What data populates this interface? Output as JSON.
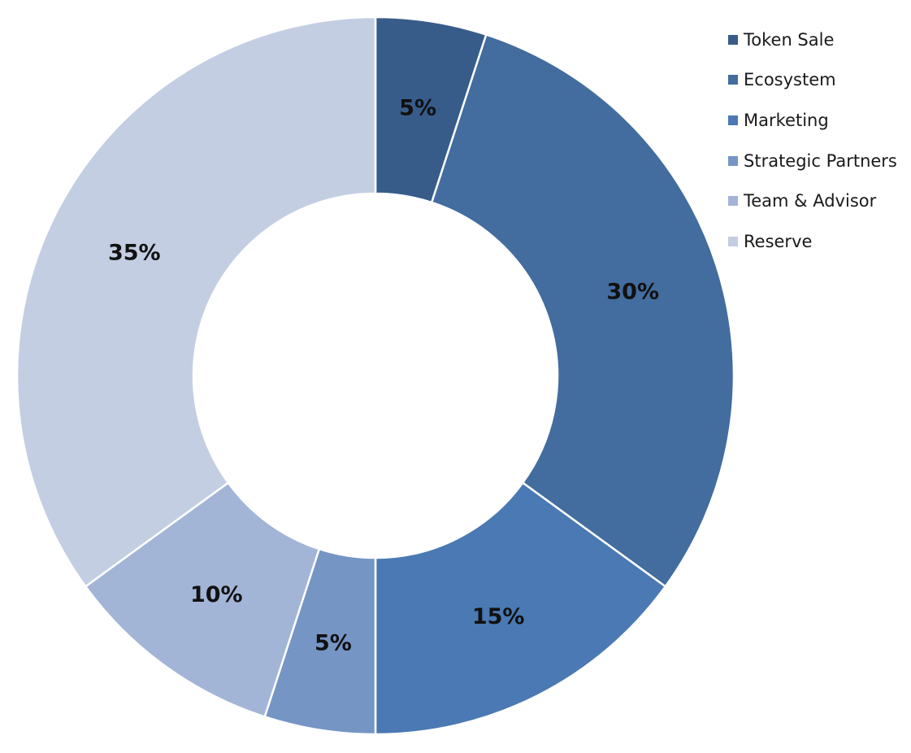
{
  "chart_data": {
    "type": "pie",
    "subtype": "donut",
    "title": "",
    "categories": [
      "Token Sale",
      "Ecosystem",
      "Marketing",
      "Strategic Partners",
      "Team & Advisor",
      "Reserve"
    ],
    "values": [
      5,
      30,
      15,
      5,
      10,
      35
    ],
    "data_labels": [
      "5%",
      "30%",
      "15%",
      "5%",
      "10%",
      "35%"
    ],
    "colors": [
      "#375c8a",
      "#436c9f",
      "#4a79b3",
      "#7595c5",
      "#a3b5d6",
      "#c3cee2"
    ],
    "legend": {
      "position": "top-right",
      "entries": [
        "Token Sale",
        "Ecosystem",
        "Marketing",
        "Strategic Partners",
        "Team & Advisor",
        "Reserve"
      ]
    },
    "grid": false
  }
}
